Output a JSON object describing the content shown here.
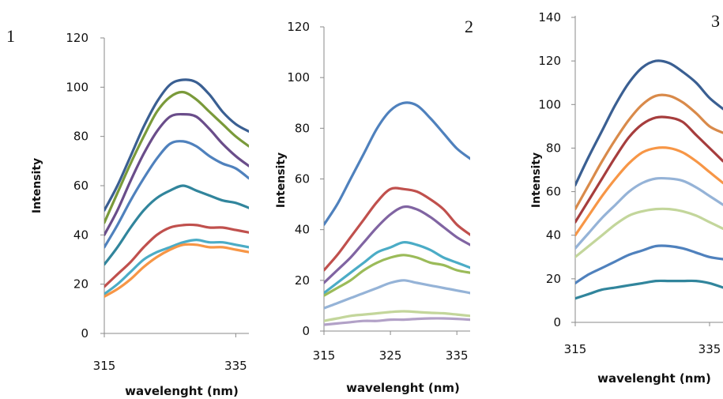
{
  "chart_data": [
    {
      "type": "line",
      "panel_label": "1",
      "xlabel": "wavelenght (nm)",
      "ylabel": "Intensity",
      "xlim": [
        315,
        337
      ],
      "ylim": [
        0,
        120
      ],
      "xticks": [
        315,
        335
      ],
      "yticks": [
        0,
        20,
        40,
        60,
        80,
        100,
        120
      ],
      "grid": false,
      "legend": "none",
      "x": [
        315,
        317,
        319,
        321,
        323,
        325,
        327,
        329,
        331,
        333,
        335,
        337
      ],
      "series": [
        {
          "color": "#3A5F92",
          "values": [
            50,
            60,
            72,
            84,
            94,
            101,
            103,
            102,
            97,
            90,
            85,
            82
          ]
        },
        {
          "color": "#7A9A3A",
          "values": [
            45,
            57,
            69,
            80,
            90,
            96,
            98,
            95,
            90,
            85,
            80,
            76
          ]
        },
        {
          "color": "#6A4D8A",
          "values": [
            40,
            50,
            62,
            73,
            82,
            88,
            89,
            88,
            83,
            77,
            72,
            68
          ]
        },
        {
          "color": "#4F81BD",
          "values": [
            35,
            44,
            54,
            63,
            71,
            77,
            78,
            76,
            72,
            69,
            67,
            63
          ]
        },
        {
          "color": "#31859C",
          "values": [
            28,
            35,
            43,
            50,
            55,
            58,
            60,
            58,
            56,
            54,
            53,
            51
          ]
        },
        {
          "color": "#C0504D",
          "values": [
            19,
            24,
            29,
            35,
            40,
            43,
            44,
            44,
            43,
            43,
            42,
            41
          ]
        },
        {
          "color": "#4BACC6",
          "values": [
            16,
            20,
            25,
            30,
            33,
            35,
            37,
            38,
            37,
            37,
            36,
            35
          ]
        },
        {
          "color": "#F79646",
          "values": [
            15,
            18,
            22,
            27,
            31,
            34,
            36,
            36,
            35,
            35,
            34,
            33
          ]
        }
      ]
    },
    {
      "type": "line",
      "panel_label": "2",
      "xlabel": "wavelenght (nm)",
      "ylabel": "Intensity",
      "xlim": [
        315,
        337
      ],
      "ylim": [
        0,
        120
      ],
      "xticks": [
        315,
        325,
        335
      ],
      "yticks": [
        0,
        20,
        40,
        60,
        80,
        100,
        120
      ],
      "grid": false,
      "legend": "none",
      "x": [
        315,
        317,
        319,
        321,
        323,
        325,
        327,
        329,
        331,
        333,
        335,
        337
      ],
      "series": [
        {
          "color": "#4F81BD",
          "values": [
            42,
            50,
            60,
            70,
            80,
            87,
            90,
            89,
            84,
            78,
            72,
            68
          ]
        },
        {
          "color": "#C0504D",
          "values": [
            24,
            30,
            37,
            44,
            51,
            56,
            56,
            55,
            52,
            48,
            42,
            38
          ]
        },
        {
          "color": "#8064A2",
          "values": [
            19,
            24,
            29,
            35,
            41,
            46,
            49,
            48,
            45,
            41,
            37,
            34
          ]
        },
        {
          "color": "#4BACC6",
          "values": [
            15,
            19,
            23,
            27,
            31,
            33,
            35,
            34,
            32,
            29,
            27,
            25
          ]
        },
        {
          "color": "#9BBB59",
          "values": [
            14,
            17,
            20,
            24,
            27,
            29,
            30,
            29,
            27,
            26,
            24,
            23
          ]
        },
        {
          "color": "#95B3D7",
          "values": [
            9,
            11,
            13,
            15,
            17,
            19,
            20,
            19,
            18,
            17,
            16,
            15
          ]
        },
        {
          "color": "#C3D69B",
          "values": [
            4,
            5,
            6,
            6.5,
            7,
            7.5,
            7.8,
            7.5,
            7.2,
            7,
            6.5,
            6
          ]
        },
        {
          "color": "#B2A1C7",
          "values": [
            2.5,
            3,
            3.5,
            4,
            4,
            4.5,
            4.5,
            4.8,
            5,
            5,
            4.8,
            4.5
          ]
        }
      ]
    },
    {
      "type": "line",
      "panel_label": "3",
      "xlabel": "wavelenght (nm)",
      "ylabel": "Intensity",
      "xlim": [
        315,
        337
      ],
      "ylim": [
        0,
        140
      ],
      "xticks": [
        315,
        335
      ],
      "yticks": [
        0,
        20,
        40,
        60,
        80,
        100,
        120,
        140
      ],
      "grid": false,
      "legend": "none",
      "x": [
        315,
        317,
        319,
        321,
        323,
        325,
        327,
        329,
        331,
        333,
        335,
        337
      ],
      "series": [
        {
          "color": "#3A5F92",
          "values": [
            63,
            76,
            88,
            100,
            110,
            117,
            120,
            119,
            115,
            110,
            103,
            98
          ]
        },
        {
          "color": "#D98A4A",
          "values": [
            52,
            63,
            74,
            84,
            93,
            100,
            104,
            104,
            101,
            96,
            90,
            87
          ]
        },
        {
          "color": "#A63D3D",
          "values": [
            46,
            56,
            66,
            76,
            85,
            91,
            94,
            94,
            92,
            86,
            80,
            74
          ]
        },
        {
          "color": "#F79646",
          "values": [
            40,
            49,
            58,
            66,
            73,
            78,
            80,
            80,
            78,
            74,
            69,
            64
          ]
        },
        {
          "color": "#95B3D7",
          "values": [
            34,
            41,
            48,
            54,
            60,
            64,
            66,
            66,
            65,
            62,
            58,
            54
          ]
        },
        {
          "color": "#C3D69B",
          "values": [
            30,
            35,
            40,
            45,
            49,
            51,
            52,
            52,
            51,
            49,
            46,
            43
          ]
        },
        {
          "color": "#4F81BD",
          "values": [
            18,
            22,
            25,
            28,
            31,
            33,
            35,
            35,
            34,
            32,
            30,
            29
          ]
        },
        {
          "color": "#31859C",
          "values": [
            11,
            13,
            15,
            16,
            17,
            18,
            19,
            19,
            19,
            19,
            18,
            16
          ]
        }
      ]
    }
  ]
}
